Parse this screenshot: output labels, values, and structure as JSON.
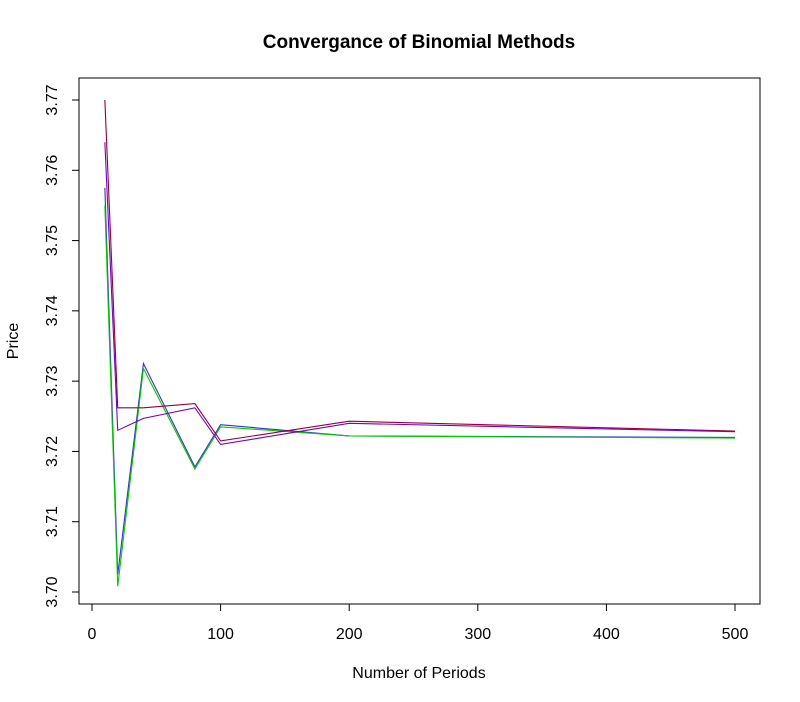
{
  "chart_data": {
    "type": "line",
    "title": "Convergance of Binomial Methods",
    "xlabel": "Number of Periods",
    "ylabel": "Price",
    "xlim": [
      0,
      500
    ],
    "ylim": [
      3.7,
      3.77
    ],
    "x_ticks": [
      0,
      100,
      200,
      300,
      400,
      500
    ],
    "x_tick_labels": [
      "0",
      "100",
      "200",
      "300",
      "400",
      "500"
    ],
    "y_ticks": [
      3.7,
      3.71,
      3.72,
      3.73,
      3.74,
      3.75,
      3.76,
      3.77
    ],
    "y_tick_labels": [
      "3.70",
      "3.71",
      "3.72",
      "3.73",
      "3.74",
      "3.75",
      "3.76",
      "3.77"
    ],
    "grid": false,
    "x": [
      10,
      20,
      40,
      80,
      100,
      200,
      500
    ],
    "series": [
      {
        "color": "#3333cc",
        "values": [
          3.7575,
          3.7025,
          3.7325,
          3.7178,
          3.7238,
          3.7222,
          3.722
        ]
      },
      {
        "color": "#00cc00",
        "values": [
          3.755,
          3.7008,
          3.7318,
          3.7175,
          3.7235,
          3.7222,
          3.7219
        ]
      },
      {
        "color": "#990033",
        "values": [
          3.77,
          3.7262,
          3.7262,
          3.7268,
          3.7215,
          3.7243,
          3.7229
        ]
      },
      {
        "color": "#7700cc",
        "values": [
          3.764,
          3.723,
          3.7247,
          3.7262,
          3.721,
          3.724,
          3.7228
        ]
      }
    ]
  }
}
